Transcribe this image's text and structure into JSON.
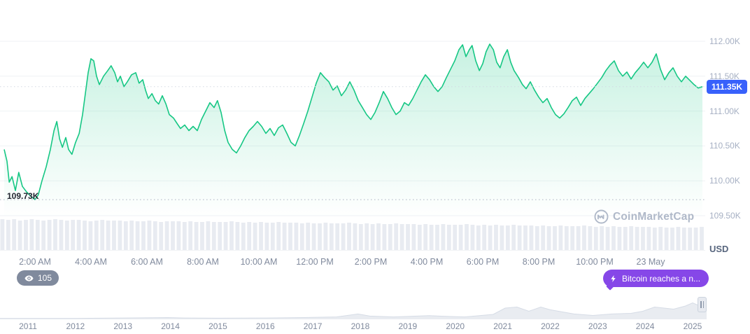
{
  "watermark_text": "CoinMarketCap",
  "badges": {
    "watch_count": "105",
    "news_label": "Bitcoin reaches a n..."
  },
  "chart_data": {
    "type": "area",
    "asset": "Bitcoin",
    "currency": "USD",
    "current_price_label": "111.35K",
    "current_price_value": 111.35,
    "low_label": "109.73K",
    "low_value": 109.73,
    "line_color": "#16c784",
    "badge_color": "#3861fb",
    "grid": "horizontal",
    "y_ticks": [
      "112.00K",
      "111.50K",
      "111.00K",
      "110.50K",
      "110.00K",
      "109.50K"
    ],
    "y_tick_values": [
      112.0,
      111.5,
      111.0,
      110.5,
      110.0,
      109.5
    ],
    "x_ticks": [
      "2:00 AM",
      "4:00 AM",
      "6:00 AM",
      "8:00 AM",
      "10:00 AM",
      "12:00 PM",
      "2:00 PM",
      "4:00 PM",
      "6:00 PM",
      "8:00 PM",
      "10:00 PM",
      "23 May"
    ],
    "x_tick_hours": [
      2,
      4,
      6,
      8,
      10,
      12,
      14,
      16,
      18,
      20,
      22,
      24
    ],
    "series_hours_price": [
      [
        0.9,
        110.45
      ],
      [
        1.0,
        110.28
      ],
      [
        1.08,
        109.98
      ],
      [
        1.18,
        110.06
      ],
      [
        1.3,
        109.86
      ],
      [
        1.42,
        110.12
      ],
      [
        1.55,
        109.92
      ],
      [
        1.7,
        109.84
      ],
      [
        1.85,
        109.78
      ],
      [
        2.0,
        109.73
      ],
      [
        2.12,
        109.8
      ],
      [
        2.25,
        110.0
      ],
      [
        2.4,
        110.2
      ],
      [
        2.55,
        110.45
      ],
      [
        2.68,
        110.72
      ],
      [
        2.78,
        110.85
      ],
      [
        2.88,
        110.6
      ],
      [
        2.98,
        110.48
      ],
      [
        3.1,
        110.62
      ],
      [
        3.2,
        110.45
      ],
      [
        3.32,
        110.38
      ],
      [
        3.45,
        110.55
      ],
      [
        3.58,
        110.68
      ],
      [
        3.7,
        110.95
      ],
      [
        3.8,
        111.25
      ],
      [
        3.9,
        111.55
      ],
      [
        4.0,
        111.75
      ],
      [
        4.1,
        111.72
      ],
      [
        4.2,
        111.5
      ],
      [
        4.3,
        111.38
      ],
      [
        4.45,
        111.5
      ],
      [
        4.6,
        111.58
      ],
      [
        4.72,
        111.65
      ],
      [
        4.85,
        111.55
      ],
      [
        4.95,
        111.42
      ],
      [
        5.05,
        111.5
      ],
      [
        5.18,
        111.35
      ],
      [
        5.3,
        111.42
      ],
      [
        5.45,
        111.52
      ],
      [
        5.6,
        111.55
      ],
      [
        5.72,
        111.4
      ],
      [
        5.85,
        111.45
      ],
      [
        5.95,
        111.3
      ],
      [
        6.05,
        111.18
      ],
      [
        6.18,
        111.25
      ],
      [
        6.3,
        111.15
      ],
      [
        6.42,
        111.1
      ],
      [
        6.55,
        111.22
      ],
      [
        6.68,
        111.1
      ],
      [
        6.8,
        110.95
      ],
      [
        6.95,
        110.9
      ],
      [
        7.08,
        110.82
      ],
      [
        7.2,
        110.75
      ],
      [
        7.35,
        110.8
      ],
      [
        7.5,
        110.72
      ],
      [
        7.65,
        110.78
      ],
      [
        7.8,
        110.72
      ],
      [
        7.95,
        110.88
      ],
      [
        8.1,
        111.0
      ],
      [
        8.25,
        111.12
      ],
      [
        8.4,
        111.05
      ],
      [
        8.52,
        111.15
      ],
      [
        8.65,
        110.98
      ],
      [
        8.78,
        110.72
      ],
      [
        8.9,
        110.55
      ],
      [
        9.05,
        110.45
      ],
      [
        9.2,
        110.4
      ],
      [
        9.35,
        110.5
      ],
      [
        9.5,
        110.62
      ],
      [
        9.65,
        110.72
      ],
      [
        9.8,
        110.78
      ],
      [
        9.95,
        110.85
      ],
      [
        10.1,
        110.78
      ],
      [
        10.25,
        110.68
      ],
      [
        10.4,
        110.75
      ],
      [
        10.55,
        110.65
      ],
      [
        10.7,
        110.76
      ],
      [
        10.85,
        110.8
      ],
      [
        11.0,
        110.68
      ],
      [
        11.15,
        110.55
      ],
      [
        11.3,
        110.5
      ],
      [
        11.45,
        110.65
      ],
      [
        11.6,
        110.82
      ],
      [
        11.75,
        111.0
      ],
      [
        11.9,
        111.2
      ],
      [
        12.05,
        111.4
      ],
      [
        12.2,
        111.55
      ],
      [
        12.35,
        111.48
      ],
      [
        12.5,
        111.42
      ],
      [
        12.65,
        111.3
      ],
      [
        12.8,
        111.36
      ],
      [
        12.95,
        111.22
      ],
      [
        13.1,
        111.3
      ],
      [
        13.25,
        111.42
      ],
      [
        13.4,
        111.3
      ],
      [
        13.55,
        111.15
      ],
      [
        13.7,
        111.05
      ],
      [
        13.85,
        110.95
      ],
      [
        14.0,
        110.88
      ],
      [
        14.15,
        110.98
      ],
      [
        14.3,
        111.12
      ],
      [
        14.45,
        111.28
      ],
      [
        14.6,
        111.18
      ],
      [
        14.75,
        111.05
      ],
      [
        14.9,
        110.95
      ],
      [
        15.05,
        111.0
      ],
      [
        15.2,
        111.12
      ],
      [
        15.35,
        111.08
      ],
      [
        15.5,
        111.18
      ],
      [
        15.65,
        111.3
      ],
      [
        15.8,
        111.42
      ],
      [
        15.95,
        111.52
      ],
      [
        16.1,
        111.45
      ],
      [
        16.25,
        111.35
      ],
      [
        16.4,
        111.28
      ],
      [
        16.55,
        111.35
      ],
      [
        16.7,
        111.48
      ],
      [
        16.85,
        111.6
      ],
      [
        17.0,
        111.72
      ],
      [
        17.15,
        111.88
      ],
      [
        17.28,
        111.95
      ],
      [
        17.4,
        111.78
      ],
      [
        17.52,
        111.88
      ],
      [
        17.62,
        111.94
      ],
      [
        17.75,
        111.72
      ],
      [
        17.88,
        111.58
      ],
      [
        18.0,
        111.68
      ],
      [
        18.12,
        111.85
      ],
      [
        18.25,
        111.96
      ],
      [
        18.38,
        111.88
      ],
      [
        18.5,
        111.7
      ],
      [
        18.62,
        111.62
      ],
      [
        18.75,
        111.78
      ],
      [
        18.88,
        111.88
      ],
      [
        19.0,
        111.7
      ],
      [
        19.12,
        111.58
      ],
      [
        19.28,
        111.48
      ],
      [
        19.42,
        111.38
      ],
      [
        19.55,
        111.32
      ],
      [
        19.7,
        111.42
      ],
      [
        19.85,
        111.3
      ],
      [
        20.0,
        111.2
      ],
      [
        20.15,
        111.12
      ],
      [
        20.3,
        111.18
      ],
      [
        20.45,
        111.05
      ],
      [
        20.6,
        110.95
      ],
      [
        20.75,
        110.9
      ],
      [
        20.9,
        110.96
      ],
      [
        21.05,
        111.05
      ],
      [
        21.2,
        111.15
      ],
      [
        21.35,
        111.2
      ],
      [
        21.5,
        111.08
      ],
      [
        21.65,
        111.18
      ],
      [
        21.8,
        111.25
      ],
      [
        21.95,
        111.32
      ],
      [
        22.1,
        111.4
      ],
      [
        22.25,
        111.48
      ],
      [
        22.4,
        111.58
      ],
      [
        22.55,
        111.66
      ],
      [
        22.7,
        111.72
      ],
      [
        22.85,
        111.58
      ],
      [
        23.0,
        111.5
      ],
      [
        23.15,
        111.56
      ],
      [
        23.3,
        111.46
      ],
      [
        23.45,
        111.55
      ],
      [
        23.6,
        111.62
      ],
      [
        23.75,
        111.7
      ],
      [
        23.9,
        111.62
      ],
      [
        24.05,
        111.7
      ],
      [
        24.2,
        111.82
      ],
      [
        24.35,
        111.6
      ],
      [
        24.5,
        111.45
      ],
      [
        24.65,
        111.55
      ],
      [
        24.8,
        111.62
      ],
      [
        24.95,
        111.5
      ],
      [
        25.1,
        111.42
      ],
      [
        25.25,
        111.5
      ],
      [
        25.4,
        111.44
      ],
      [
        25.55,
        111.38
      ],
      [
        25.7,
        111.33
      ],
      [
        25.85,
        111.35
      ]
    ],
    "volume_relative": [
      44,
      43,
      44,
      42,
      43,
      44,
      43,
      42,
      43,
      44,
      43,
      42,
      43,
      43,
      42,
      41,
      42,
      43,
      42,
      42,
      42,
      41,
      42,
      41,
      41,
      42,
      41,
      40,
      41,
      41,
      41,
      40,
      41,
      40,
      40,
      41,
      40,
      40,
      40,
      41,
      40,
      39,
      40,
      39,
      40,
      39,
      39,
      40,
      39,
      39,
      39,
      38,
      39,
      38,
      38,
      39,
      38,
      38,
      38,
      39,
      38,
      37,
      38,
      37,
      38,
      37,
      37,
      38,
      37,
      37,
      37,
      36,
      37,
      36,
      36,
      37,
      36,
      36,
      36,
      37,
      36,
      35,
      36,
      35,
      36,
      35,
      35,
      36,
      35,
      35,
      35,
      34,
      35,
      34,
      34,
      35,
      34,
      34,
      34,
      35,
      34,
      33,
      34,
      33,
      34,
      33,
      33,
      34,
      33,
      33,
      33,
      32,
      33,
      32,
      32,
      33,
      32,
      32,
      32,
      33
    ],
    "brush": {
      "years": [
        "2011",
        "2012",
        "2013",
        "2014",
        "2015",
        "2016",
        "2017",
        "2018",
        "2019",
        "2020",
        "2021",
        "2022",
        "2023",
        "2024",
        "2025"
      ],
      "series_year_value": [
        [
          2010.4,
          0.01
        ],
        [
          2011,
          0.01
        ],
        [
          2012,
          0.01
        ],
        [
          2013,
          0.03
        ],
        [
          2013.95,
          0.05
        ],
        [
          2014.3,
          0.03
        ],
        [
          2015,
          0.02
        ],
        [
          2016,
          0.03
        ],
        [
          2016.8,
          0.05
        ],
        [
          2017.5,
          0.08
        ],
        [
          2017.95,
          0.22
        ],
        [
          2018.2,
          0.12
        ],
        [
          2018.7,
          0.08
        ],
        [
          2019.45,
          0.14
        ],
        [
          2019.9,
          0.1
        ],
        [
          2020.2,
          0.08
        ],
        [
          2020.8,
          0.2
        ],
        [
          2021.05,
          0.5
        ],
        [
          2021.3,
          0.55
        ],
        [
          2021.55,
          0.35
        ],
        [
          2021.8,
          0.55
        ],
        [
          2022.0,
          0.42
        ],
        [
          2022.5,
          0.22
        ],
        [
          2022.9,
          0.15
        ],
        [
          2023.3,
          0.22
        ],
        [
          2023.7,
          0.25
        ],
        [
          2023.95,
          0.35
        ],
        [
          2024.2,
          0.55
        ],
        [
          2024.4,
          0.5
        ],
        [
          2024.6,
          0.45
        ],
        [
          2024.85,
          0.6
        ],
        [
          2025.0,
          0.75
        ],
        [
          2025.1,
          0.65
        ],
        [
          2025.25,
          0.85
        ],
        [
          2025.4,
          0.95
        ]
      ]
    }
  }
}
